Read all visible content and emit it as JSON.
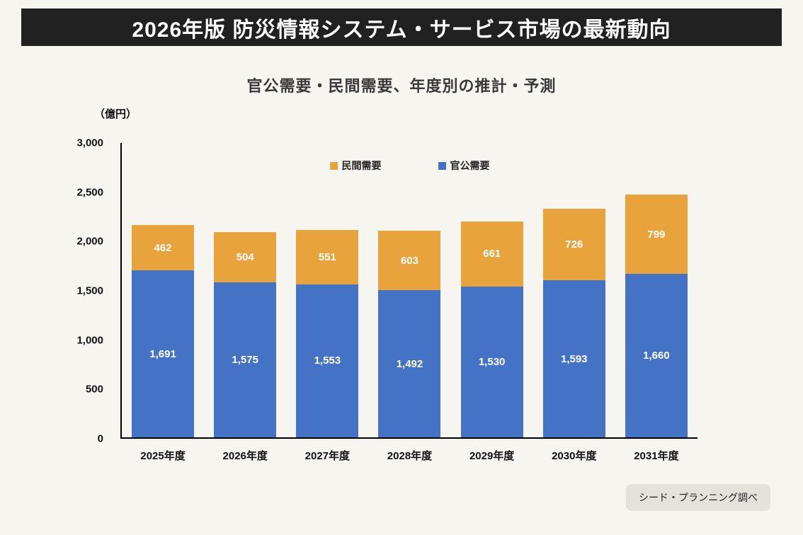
{
  "header": {
    "title": "2026年版 防災情報システム・サービス市場の最新動向"
  },
  "chart": {
    "title": "官公需要・民間需要、年度別の推計・予測",
    "unit_label": "（億円）",
    "source_label": "シード・プランニング調べ"
  },
  "colors": {
    "header_bg": "#212121",
    "public_demand_blue": "#4472C4",
    "private_demand_yellow": "#E8A33D",
    "page_bg": "#F7F5EF",
    "source_badge_bg": "#E5E2DB"
  },
  "chart_data": {
    "type": "bar",
    "stacked": true,
    "title": "官公需要・民間需要、年度別の推計・予測",
    "unit": "億円",
    "categories": [
      "2025年度",
      "2026年度",
      "2027年度",
      "2028年度",
      "2029年度",
      "2030年度",
      "2031年度"
    ],
    "series": [
      {
        "name": "官公需要",
        "color": "#4472C4",
        "values": [
          1691,
          1575,
          1553,
          1492,
          1530,
          1593,
          1660
        ],
        "labels": [
          "1,691",
          "1,575",
          "1,553",
          "1,492",
          "1,530",
          "1,593",
          "1,660"
        ]
      },
      {
        "name": "民間需要",
        "color": "#E8A33D",
        "values": [
          462,
          504,
          551,
          603,
          661,
          726,
          799
        ],
        "labels": [
          "462",
          "504",
          "551",
          "603",
          "661",
          "726",
          "799"
        ]
      }
    ],
    "totals": [
      2153,
      2079,
      2104,
      2095,
      2191,
      2319,
      2459
    ],
    "xlabel": "",
    "ylabel": "（億円）",
    "ylim": [
      0,
      3000
    ],
    "yticks": [
      0,
      500,
      1000,
      1500,
      2000,
      2500,
      3000
    ],
    "ytick_labels": [
      "0",
      "500",
      "1,000",
      "1,500",
      "2,000",
      "2,500",
      "3,000"
    ],
    "legend": [
      {
        "label": "民間需要",
        "color": "#E8A33D"
      },
      {
        "label": "官公需要",
        "color": "#4472C4"
      }
    ],
    "legend_position": "top-center-inside",
    "grid": false,
    "source": "シード・プランニング調べ"
  }
}
